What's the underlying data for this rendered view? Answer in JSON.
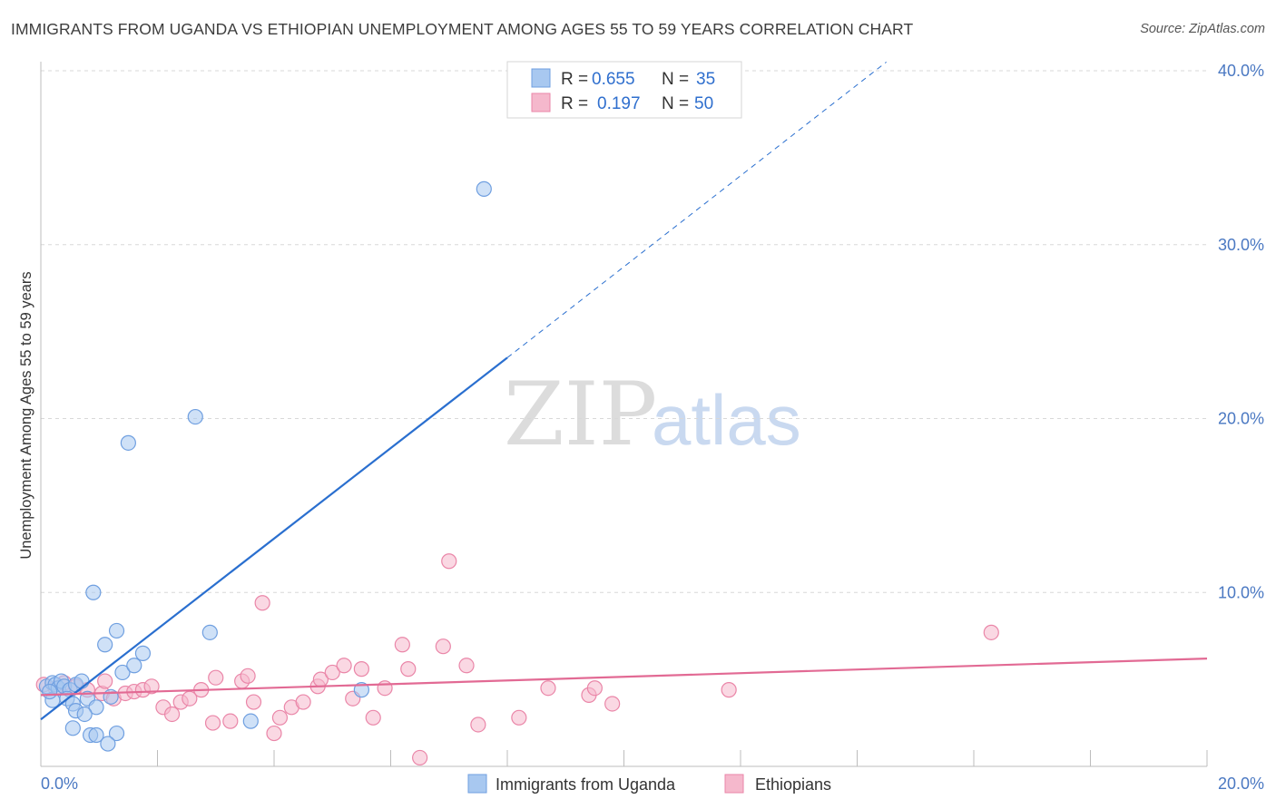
{
  "title": "IMMIGRANTS FROM UGANDA VS ETHIOPIAN UNEMPLOYMENT AMONG AGES 55 TO 59 YEARS CORRELATION CHART",
  "source": "Source: ZipAtlas.com",
  "watermark": {
    "zip": "ZIP",
    "atlas": "atlas"
  },
  "legend_box": [
    {
      "r_label": "R =",
      "r_value": "0.655",
      "n_label": "N =",
      "n_value": "35"
    },
    {
      "r_label": "R =",
      "r_value": "0.197",
      "n_label": "N =",
      "n_value": "50"
    }
  ],
  "colors": {
    "blue_fill": "#a8c8f0",
    "blue_stroke": "#6f9fe0",
    "blue_line": "#2a6fcf",
    "pink_fill": "#f5b8cc",
    "pink_stroke": "#ea86a8",
    "pink_line": "#e26a94",
    "tick_text": "#4a78c2",
    "grid": "#d8d8d8"
  },
  "chart_data": {
    "type": "scatter",
    "title": "IMMIGRANTS FROM UGANDA VS ETHIOPIAN UNEMPLOYMENT AMONG AGES 55 TO 59 YEARS CORRELATION CHART",
    "xlabel": "",
    "ylabel": "Unemployment Among Ages 55 to 59 years",
    "xlim": [
      0,
      20
    ],
    "ylim": [
      0,
      40
    ],
    "x_tick_labels": [
      "0.0%",
      "20.0%"
    ],
    "y_ticks": [
      10,
      20,
      30,
      40
    ],
    "y_tick_labels": [
      "10.0%",
      "20.0%",
      "30.0%",
      "40.0%"
    ],
    "legend": [
      "Immigrants from Uganda",
      "Ethiopians"
    ],
    "series": [
      {
        "name": "Immigrants from Uganda",
        "r": 0.655,
        "n": 35,
        "points": [
          [
            0.1,
            4.6
          ],
          [
            0.2,
            4.8
          ],
          [
            0.25,
            4.7
          ],
          [
            0.3,
            4.5
          ],
          [
            0.35,
            4.9
          ],
          [
            0.4,
            4.6
          ],
          [
            0.5,
            4.4
          ],
          [
            0.6,
            4.7
          ],
          [
            0.7,
            4.9
          ],
          [
            0.2,
            3.8
          ],
          [
            0.45,
            3.9
          ],
          [
            0.55,
            3.6
          ],
          [
            0.8,
            3.9
          ],
          [
            0.6,
            3.2
          ],
          [
            0.95,
            3.4
          ],
          [
            1.2,
            4.0
          ],
          [
            0.75,
            3.0
          ],
          [
            0.55,
            2.2
          ],
          [
            0.85,
            1.8
          ],
          [
            0.95,
            1.8
          ],
          [
            1.3,
            1.9
          ],
          [
            1.15,
            1.3
          ],
          [
            0.9,
            10.0
          ],
          [
            1.1,
            7.0
          ],
          [
            1.3,
            7.8
          ],
          [
            1.4,
            5.4
          ],
          [
            1.6,
            5.8
          ],
          [
            1.75,
            6.5
          ],
          [
            2.9,
            7.7
          ],
          [
            1.5,
            18.6
          ],
          [
            2.65,
            20.1
          ],
          [
            3.6,
            2.6
          ],
          [
            5.5,
            4.4
          ],
          [
            7.6,
            33.2
          ],
          [
            0.15,
            4.3
          ]
        ],
        "trend": {
          "x0": 0,
          "y0": 2.7,
          "x1": 8.0,
          "y1": 23.5,
          "dashed_to_x": 14.5,
          "dashed_to_y": 40.5
        }
      },
      {
        "name": "Ethiopians",
        "r": 0.197,
        "n": 50,
        "points": [
          [
            0.05,
            4.7
          ],
          [
            0.25,
            4.5
          ],
          [
            0.4,
            4.8
          ],
          [
            0.6,
            4.6
          ],
          [
            0.8,
            4.4
          ],
          [
            1.05,
            4.2
          ],
          [
            1.1,
            4.9
          ],
          [
            1.25,
            3.9
          ],
          [
            1.45,
            4.2
          ],
          [
            1.6,
            4.3
          ],
          [
            1.75,
            4.4
          ],
          [
            1.9,
            4.6
          ],
          [
            2.1,
            3.4
          ],
          [
            2.25,
            3.0
          ],
          [
            2.4,
            3.7
          ],
          [
            2.55,
            3.9
          ],
          [
            2.75,
            4.4
          ],
          [
            2.95,
            2.5
          ],
          [
            3.0,
            5.1
          ],
          [
            3.25,
            2.6
          ],
          [
            3.45,
            4.9
          ],
          [
            3.55,
            5.2
          ],
          [
            3.65,
            3.7
          ],
          [
            3.8,
            9.4
          ],
          [
            4.0,
            1.9
          ],
          [
            4.1,
            2.8
          ],
          [
            4.3,
            3.4
          ],
          [
            4.5,
            3.7
          ],
          [
            4.75,
            4.6
          ],
          [
            4.8,
            5.0
          ],
          [
            5.0,
            5.4
          ],
          [
            5.2,
            5.8
          ],
          [
            5.35,
            3.9
          ],
          [
            5.5,
            5.6
          ],
          [
            5.7,
            2.8
          ],
          [
            5.9,
            4.5
          ],
          [
            6.2,
            7.0
          ],
          [
            6.3,
            5.6
          ],
          [
            6.5,
            0.5
          ],
          [
            6.9,
            6.9
          ],
          [
            7.0,
            11.8
          ],
          [
            7.3,
            5.8
          ],
          [
            7.5,
            2.4
          ],
          [
            8.2,
            2.8
          ],
          [
            8.7,
            4.5
          ],
          [
            9.4,
            4.1
          ],
          [
            9.5,
            4.5
          ],
          [
            9.8,
            3.6
          ],
          [
            11.8,
            4.4
          ],
          [
            16.3,
            7.7
          ]
        ],
        "trend": {
          "x0": 0,
          "y0": 4.1,
          "x1": 20,
          "y1": 6.2
        }
      }
    ]
  }
}
